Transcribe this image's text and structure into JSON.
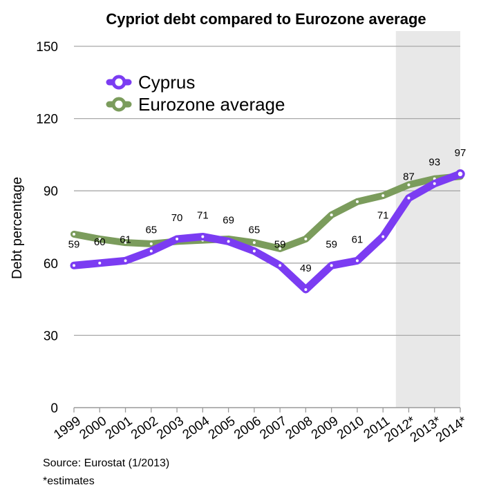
{
  "chart_data": {
    "type": "line",
    "title": "Cypriot debt compared to Eurozone average",
    "ylabel": "Debt percentage",
    "xlabel": "",
    "categories": [
      "1999",
      "2000",
      "2001",
      "2002",
      "2003",
      "2004",
      "2005",
      "2006",
      "2007",
      "2008",
      "2009",
      "2010",
      "2011",
      "2012*",
      "2013*",
      "2014*"
    ],
    "ylim": [
      0,
      150
    ],
    "yticks": [
      0,
      30,
      60,
      90,
      120,
      150
    ],
    "grid": true,
    "legend_position": "top-left",
    "estimates_start_category": "2012*",
    "series": [
      {
        "name": "Cyprus",
        "color": "#7b3cf2",
        "values": [
          59,
          60,
          61,
          65,
          70,
          71,
          69,
          65,
          59,
          49,
          59,
          61,
          71,
          87,
          93,
          97
        ],
        "data_labels": [
          "59",
          "60",
          "61",
          "65",
          "70",
          "71",
          "69",
          "65",
          "59",
          "49",
          "59",
          "61",
          "71",
          "87",
          "93",
          "97"
        ]
      },
      {
        "name": "Eurozone average",
        "color": "#7b9c5c",
        "values": [
          72,
          70,
          68.5,
          68,
          69,
          69.5,
          70,
          68.5,
          66,
          70,
          80,
          85.5,
          88,
          92.5,
          95,
          96
        ]
      }
    ],
    "notes": [
      "Source: Eurostat (1/2013)",
      "*estimates"
    ]
  }
}
